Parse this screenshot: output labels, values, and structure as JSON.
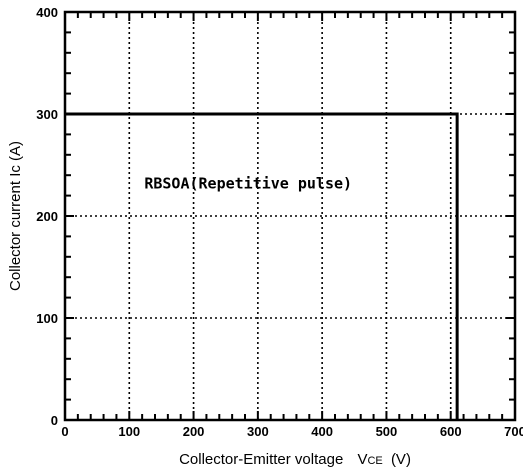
{
  "chart_data": {
    "type": "line",
    "title": "",
    "xlabel": "Collector-Emitter voltage",
    "xlabel_symbol": "V",
    "xlabel_subscript": "CE",
    "xlabel_unit": "(V)",
    "ylabel": "Collector current Ic (A)",
    "xlim": [
      0,
      700
    ],
    "ylim": [
      0,
      400
    ],
    "x_ticks": [
      0,
      100,
      200,
      300,
      400,
      500,
      600,
      700
    ],
    "y_ticks": [
      0,
      100,
      200,
      300,
      400
    ],
    "grid": true,
    "grid_style": "dotted",
    "series": [
      {
        "name": "",
        "x": [
          0,
          610,
          610
        ],
        "y": [
          300,
          300,
          0
        ]
      }
    ],
    "annotations": [
      {
        "text": "RBSOA(Repetitive pulse)",
        "x": 285,
        "y": 232
      }
    ]
  }
}
